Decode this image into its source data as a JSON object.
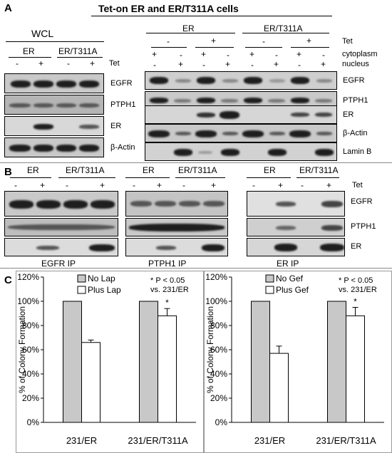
{
  "panels": {
    "a": "A",
    "b": "B",
    "c": "C"
  },
  "panel_a": {
    "title": "Tet-on ER and ER/T311A cells",
    "wcl": "WCL",
    "er": "ER",
    "er_t311a": "ER/T311A",
    "tet": "Tet",
    "cytoplasm": "cytoplasm",
    "nucleus": "nucleus",
    "minus": "-",
    "plus": "+",
    "wcl_rows": [
      "EGFR",
      "PTPH1",
      "ER",
      "β-Actin"
    ],
    "frac_rows": [
      "EGFR",
      "PTPH1",
      "ER",
      "β-Actin",
      "Lamin B"
    ]
  },
  "panel_b": {
    "er": "ER",
    "er_t311a": "ER/T311A",
    "tet": "Tet",
    "minus": "-",
    "plus": "+",
    "rows": [
      "EGFR",
      "PTPH1",
      "ER"
    ],
    "ip_labels": [
      "EGFR IP",
      "PTPH1 IP",
      "ER IP"
    ]
  },
  "chart_data": [
    {
      "type": "bar",
      "categories": [
        "231/ER",
        "231/ER/T311A"
      ],
      "series": [
        {
          "name": "No Lap",
          "values": [
            100,
            100
          ],
          "color": "#c8c8c8"
        },
        {
          "name": "Plus Lap",
          "values": [
            66,
            88
          ],
          "errors": [
            2,
            6
          ],
          "color": "#ffffff"
        }
      ],
      "ylabel": "% of Colony Formation",
      "yticks": [
        "0%",
        "20%",
        "40%",
        "60%",
        "80%",
        "100%",
        "120%"
      ],
      "ylim": [
        0,
        120
      ],
      "annotation_line1": "* P < 0.05",
      "annotation_line2": "vs. 231/ER",
      "significance": [
        "",
        "*"
      ]
    },
    {
      "type": "bar",
      "categories": [
        "231/ER",
        "231/ER/T311A"
      ],
      "series": [
        {
          "name": "No Gef",
          "values": [
            100,
            100
          ],
          "color": "#c8c8c8"
        },
        {
          "name": "Plus Gef",
          "values": [
            57,
            88
          ],
          "errors": [
            6,
            7
          ],
          "color": "#ffffff"
        }
      ],
      "ylabel": "% of Colony Formation",
      "yticks": [
        "0%",
        "20%",
        "40%",
        "60%",
        "80%",
        "100%",
        "120%"
      ],
      "ylim": [
        0,
        120
      ],
      "annotation_line1": "* P < 0.05",
      "annotation_line2": "vs. 231/ER",
      "significance": [
        "",
        "*"
      ]
    }
  ]
}
